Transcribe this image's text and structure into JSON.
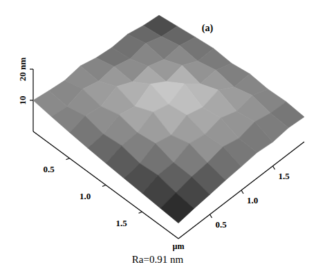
{
  "chart_data": {
    "type": "surface",
    "title": "(a)",
    "annotations": [
      "Ra=0.91 nm"
    ],
    "x_label": "µm",
    "xlim": [
      0,
      2
    ],
    "ylim": [
      0,
      2
    ],
    "zlim": [
      0,
      20
    ],
    "xticks": [
      0.5,
      {
        "value": 1,
        "label": "1.0"
      },
      1.5
    ],
    "yticks": [
      0.5,
      {
        "value": 1,
        "label": "1.0"
      },
      1.5
    ],
    "zticks": [
      10,
      {
        "value": 20,
        "label": "20 nm"
      }
    ],
    "x": [
      0,
      0.25,
      0.5,
      0.75,
      1,
      1.25,
      1.5,
      1.75,
      2
    ],
    "y": [
      0,
      0.25,
      0.5,
      0.75,
      1,
      1.25,
      1.5,
      1.75,
      2
    ],
    "z": [
      [
        10.0,
        9.2,
        8.6,
        9.4,
        8.1,
        7.5,
        7.9,
        6.8,
        6.2
      ],
      [
        9.1,
        8.4,
        10.2,
        8.8,
        9.6,
        8.2,
        9.3,
        7.6,
        7.0
      ],
      [
        8.3,
        9.7,
        8.9,
        11.4,
        9.0,
        10.1,
        8.4,
        9.0,
        7.8
      ],
      [
        7.6,
        8.2,
        10.5,
        9.3,
        12.6,
        9.5,
        10.8,
        8.3,
        8.5
      ],
      [
        7.0,
        8.8,
        9.1,
        11.8,
        10.4,
        13.1,
        9.2,
        9.7,
        8.0
      ],
      [
        6.5,
        7.4,
        9.9,
        8.7,
        11.2,
        9.8,
        11.5,
        8.6,
        8.9
      ],
      [
        6.0,
        7.9,
        8.1,
        10.3,
        9.4,
        10.7,
        9.0,
        10.2,
        8.3
      ],
      [
        5.5,
        6.6,
        7.8,
        8.4,
        9.7,
        8.5,
        9.9,
        8.8,
        8.6
      ],
      [
        5.0,
        5.8,
        6.4,
        7.1,
        7.6,
        8.2,
        7.7,
        8.4,
        8.0
      ]
    ]
  }
}
